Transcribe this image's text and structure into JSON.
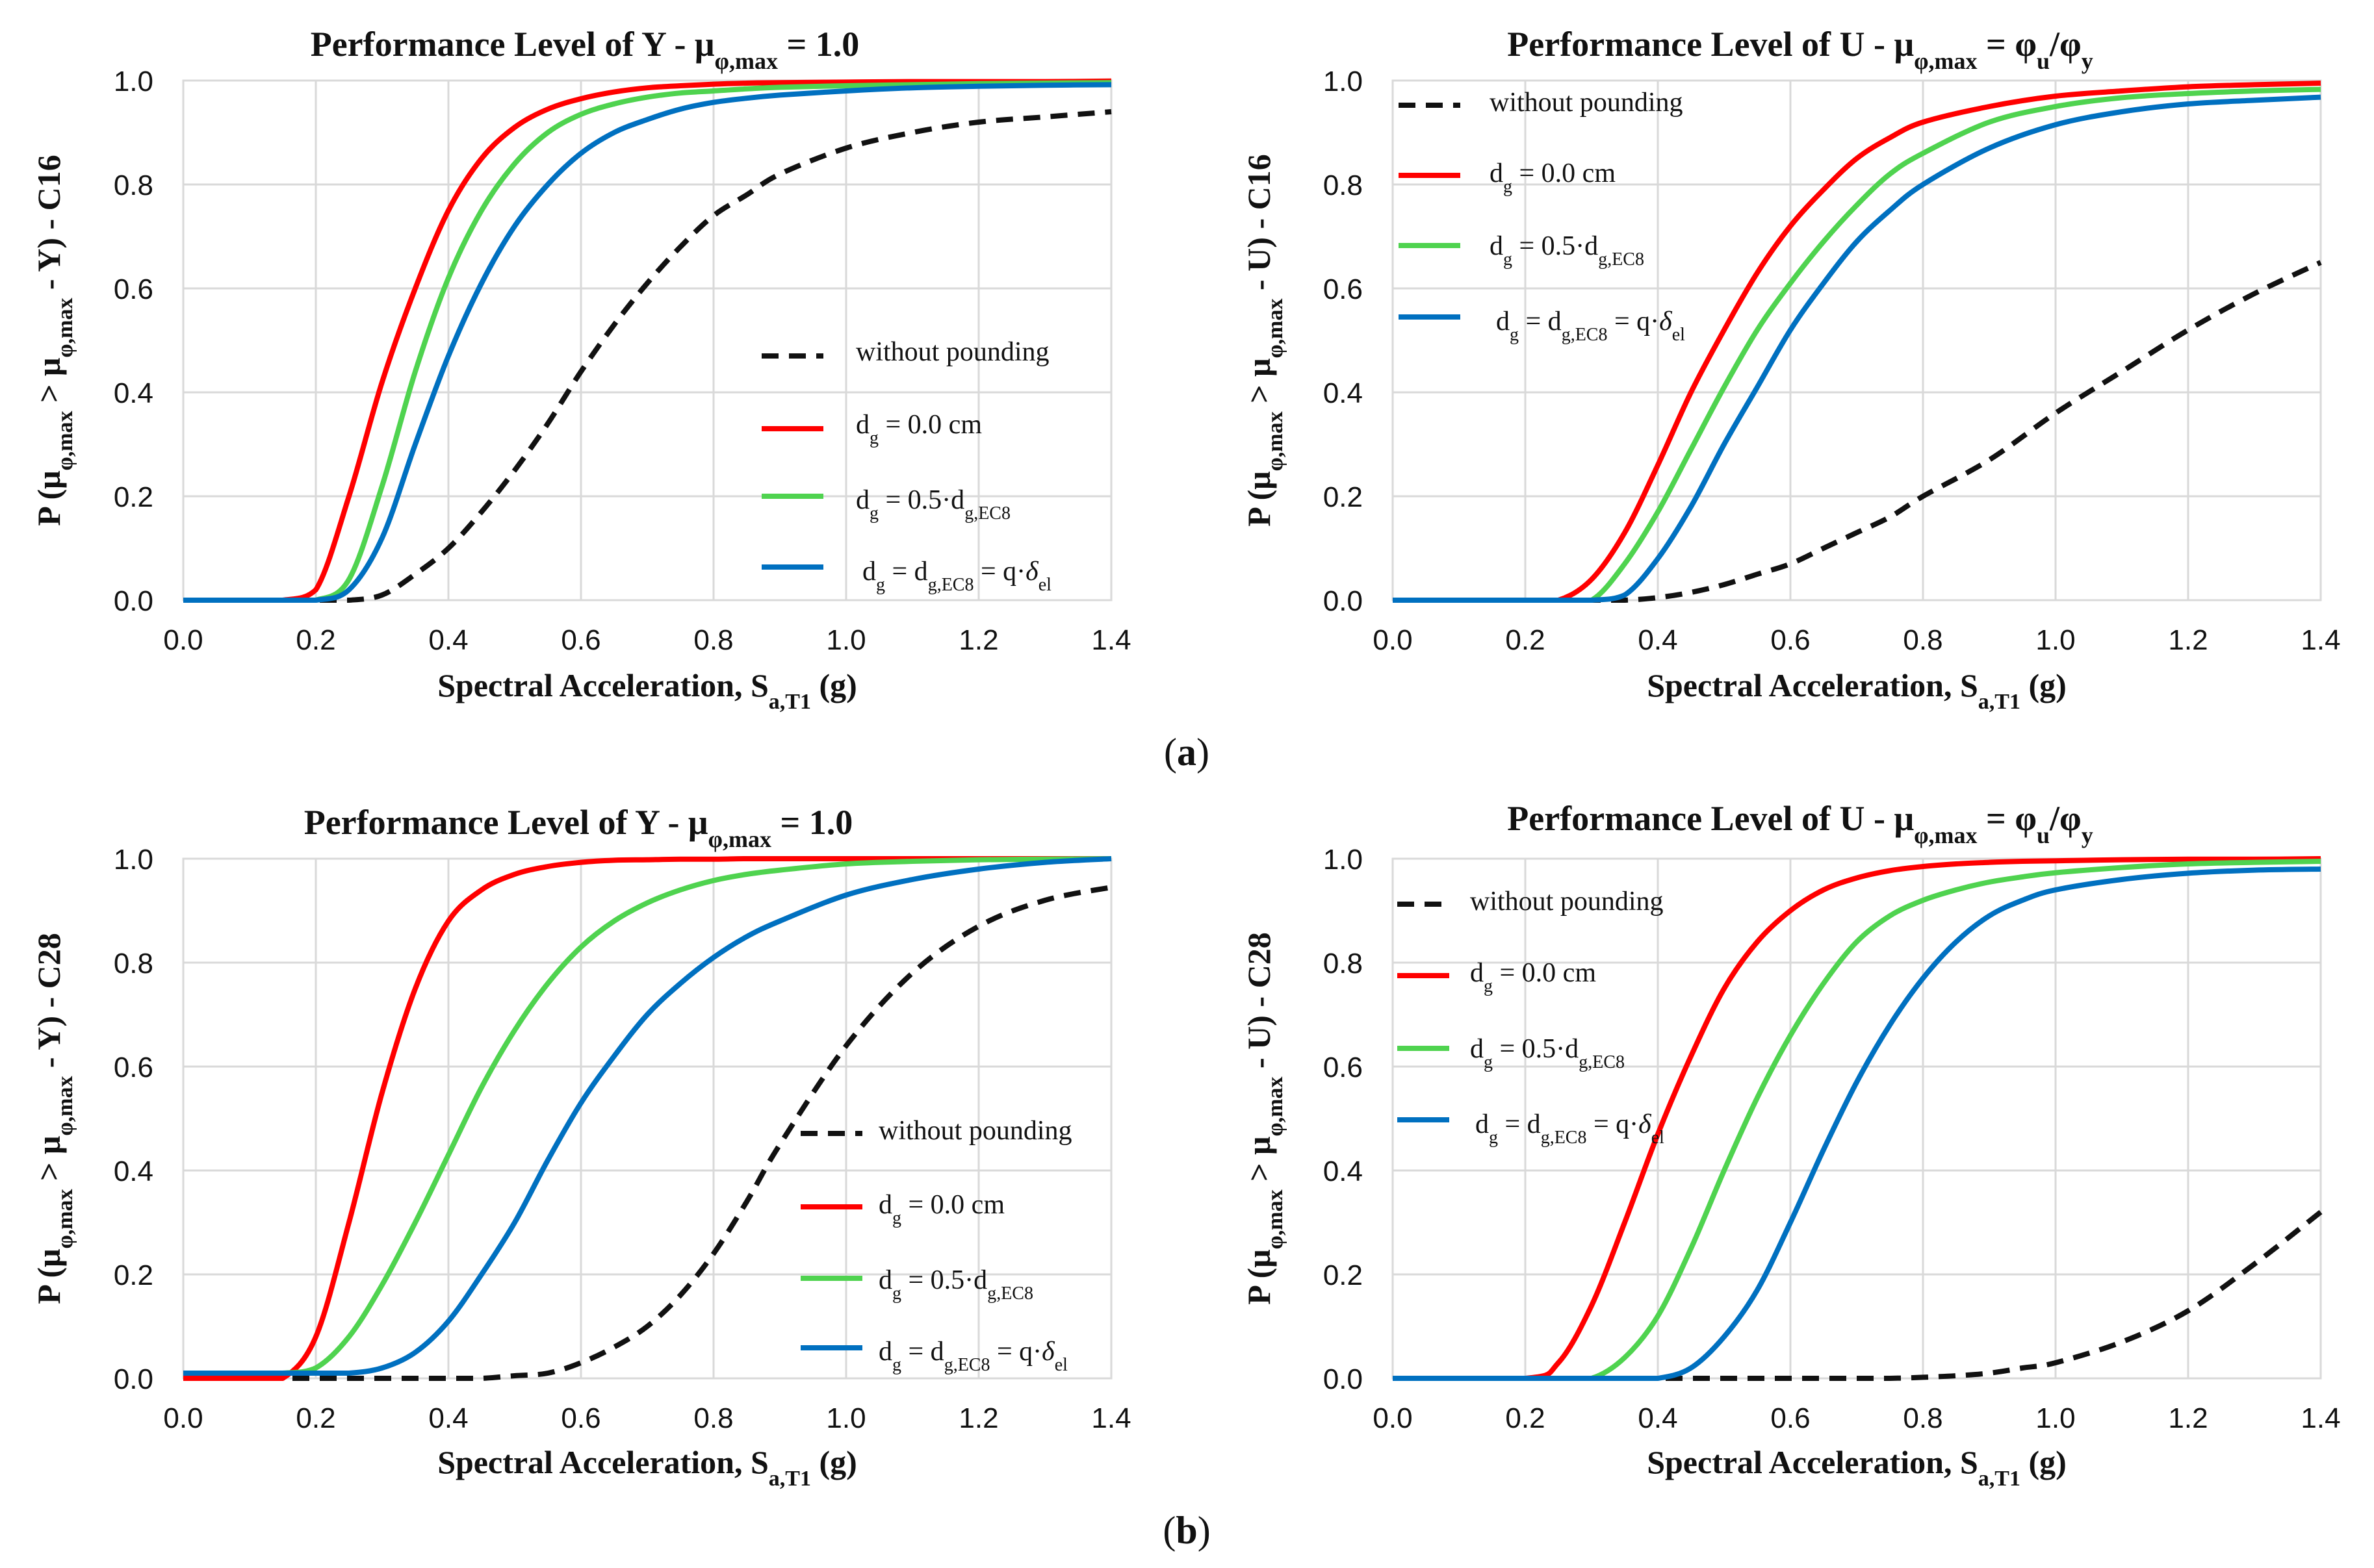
{
  "captions": {
    "a": "a",
    "b": "b"
  },
  "colors": {
    "red": "#ff0000",
    "green": "#4fd34f",
    "blue": "#0070c0",
    "black": "#111111"
  },
  "legend_labels": {
    "without": "without pounding",
    "dg0": "dg = 0.0 cm",
    "dg05": "dg = 0.5·dg,EC8",
    "dgec8": "dg = dg,EC8 = q·δel"
  },
  "chart_data": [
    {
      "id": "a-left",
      "type": "line",
      "title": "Performance Level of  Y - μφ,max = 1.0",
      "title_parts": {
        "t1": "Performance Level of  Y - μ",
        "s1": "φ,max",
        "t2": " = 1.0"
      },
      "xlabel": "Spectral Acceleration, Sa,T1 (g)",
      "ylabel": "P (μφ,max > μφ,max - Y) - C16",
      "ylabel_suffix": "Y) - C16",
      "xlim": [
        0,
        1.4
      ],
      "ylim": [
        0,
        1.0
      ],
      "xticks": [
        "0.0",
        "0.2",
        "0.4",
        "0.6",
        "0.8",
        "1.0",
        "1.2",
        "1.4"
      ],
      "yticks": [
        "0.0",
        "0.2",
        "0.4",
        "0.6",
        "0.8",
        "1.0"
      ],
      "legend_position": "center-right",
      "x": [
        0.0,
        0.1,
        0.15,
        0.2,
        0.25,
        0.3,
        0.35,
        0.4,
        0.45,
        0.5,
        0.55,
        0.6,
        0.65,
        0.7,
        0.75,
        0.8,
        0.85,
        0.9,
        1.0,
        1.1,
        1.2,
        1.3,
        1.4
      ],
      "series": [
        {
          "name": "without pounding",
          "style": "dashed",
          "values": [
            0,
            0,
            0,
            0,
            0,
            0.01,
            0.05,
            0.1,
            0.17,
            0.25,
            0.34,
            0.44,
            0.53,
            0.61,
            0.68,
            0.74,
            0.78,
            0.82,
            0.87,
            0.9,
            0.92,
            0.93,
            0.94
          ]
        },
        {
          "name": "dg = 0.0 cm",
          "style": "solid",
          "values": [
            0,
            0,
            0,
            0.02,
            0.2,
            0.42,
            0.6,
            0.75,
            0.85,
            0.91,
            0.945,
            0.965,
            0.978,
            0.986,
            0.99,
            0.993,
            0.995,
            0.996,
            0.997,
            0.998,
            0.998,
            0.998,
            0.999
          ]
        },
        {
          "name": "dg = 0.5·dg,EC8",
          "style": "solid",
          "values": [
            0,
            0,
            0,
            0,
            0.04,
            0.22,
            0.44,
            0.62,
            0.75,
            0.84,
            0.9,
            0.935,
            0.955,
            0.968,
            0.976,
            0.98,
            0.984,
            0.987,
            0.99,
            0.992,
            0.994,
            0.995,
            0.996
          ]
        },
        {
          "name": "dg = dg,EC8 = q·δel",
          "style": "solid",
          "values": [
            0,
            0,
            0,
            0,
            0.02,
            0.12,
            0.3,
            0.47,
            0.61,
            0.72,
            0.8,
            0.86,
            0.9,
            0.925,
            0.945,
            0.958,
            0.966,
            0.972,
            0.98,
            0.986,
            0.989,
            0.991,
            0.992
          ]
        }
      ]
    },
    {
      "id": "a-right",
      "type": "line",
      "title": "Performance Level of  U - μφ,max = φu/φy",
      "title_parts": {
        "t1": "Performance Level of  U - μ",
        "s1": "φ,max",
        "t2": " = φ",
        "s2": "u",
        "t3": "/φ",
        "s3": "y"
      },
      "xlabel": "Spectral Acceleration, Sa,T1 (g)",
      "ylabel": "P (μφ,max > μφ,max - U) - C16",
      "ylabel_suffix": "U) - C16",
      "xlim": [
        0,
        1.4
      ],
      "ylim": [
        0,
        1.0
      ],
      "xticks": [
        "0.0",
        "0.2",
        "0.4",
        "0.6",
        "0.8",
        "1.0",
        "1.2",
        "1.4"
      ],
      "yticks": [
        "0.0",
        "0.2",
        "0.4",
        "0.6",
        "0.8",
        "1.0"
      ],
      "legend_position": "top-left",
      "x": [
        0.0,
        0.2,
        0.25,
        0.3,
        0.35,
        0.4,
        0.45,
        0.5,
        0.55,
        0.6,
        0.65,
        0.7,
        0.75,
        0.8,
        0.9,
        1.0,
        1.1,
        1.2,
        1.3,
        1.4
      ],
      "series": [
        {
          "name": "without pounding",
          "style": "dashed",
          "values": [
            0,
            0,
            0,
            0,
            0,
            0.005,
            0.015,
            0.03,
            0.05,
            0.07,
            0.1,
            0.13,
            0.16,
            0.2,
            0.27,
            0.36,
            0.44,
            0.52,
            0.59,
            0.65
          ]
        },
        {
          "name": "dg = 0.0 cm",
          "style": "solid",
          "values": [
            0,
            0,
            0,
            0.04,
            0.13,
            0.26,
            0.4,
            0.52,
            0.63,
            0.72,
            0.79,
            0.85,
            0.89,
            0.92,
            0.95,
            0.97,
            0.98,
            0.988,
            0.992,
            0.995
          ]
        },
        {
          "name": "dg = 0.5·dg,EC8",
          "style": "solid",
          "values": [
            0,
            0,
            0,
            0,
            0.07,
            0.17,
            0.29,
            0.41,
            0.52,
            0.61,
            0.69,
            0.76,
            0.82,
            0.86,
            0.92,
            0.95,
            0.967,
            0.975,
            0.98,
            0.983
          ]
        },
        {
          "name": "dg = dg,EC8 = q·δel",
          "style": "solid",
          "values": [
            0,
            0,
            0,
            0,
            0.01,
            0.08,
            0.18,
            0.3,
            0.41,
            0.52,
            0.61,
            0.69,
            0.75,
            0.8,
            0.87,
            0.915,
            0.94,
            0.955,
            0.962,
            0.968
          ]
        }
      ]
    },
    {
      "id": "b-left",
      "type": "line",
      "title": "Performance Level of Y - μφ,max = 1.0",
      "title_parts": {
        "t1": "Performance Level of Y - μ",
        "s1": "φ,max",
        "t2": " = 1.0"
      },
      "xlabel": "Spectral Acceleration, Sa,T1 (g)",
      "ylabel": "P (μφ,max > μφ,max - Y) - C28",
      "ylabel_suffix": "Y) - C28",
      "xlim": [
        0,
        1.4
      ],
      "ylim": [
        0,
        1.0
      ],
      "xticks": [
        "0.0",
        "0.2",
        "0.4",
        "0.6",
        "0.8",
        "1.0",
        "1.2",
        "1.4"
      ],
      "yticks": [
        "0.0",
        "0.2",
        "0.4",
        "0.6",
        "0.8",
        "1.0"
      ],
      "legend_position": "center-right",
      "x": [
        0.0,
        0.1,
        0.15,
        0.2,
        0.25,
        0.3,
        0.35,
        0.4,
        0.45,
        0.5,
        0.55,
        0.6,
        0.65,
        0.7,
        0.75,
        0.8,
        0.85,
        0.9,
        1.0,
        1.1,
        1.2,
        1.3,
        1.4
      ],
      "series": [
        {
          "name": "without pounding",
          "style": "dashed",
          "values": [
            0,
            0,
            0,
            0,
            0,
            0,
            0,
            0,
            0,
            0.005,
            0.01,
            0.03,
            0.06,
            0.1,
            0.16,
            0.24,
            0.34,
            0.45,
            0.64,
            0.78,
            0.87,
            0.92,
            0.945
          ]
        },
        {
          "name": "dg = 0.0 cm",
          "style": "solid",
          "values": [
            0,
            0,
            0,
            0.08,
            0.3,
            0.55,
            0.75,
            0.88,
            0.94,
            0.97,
            0.985,
            0.993,
            0.997,
            0.998,
            0.999,
            0.999,
            1,
            1,
            1,
            1,
            1,
            1,
            1
          ]
        },
        {
          "name": "dg = 0.5·dg,EC8",
          "style": "solid",
          "values": [
            0.01,
            0.01,
            0.01,
            0.02,
            0.08,
            0.18,
            0.3,
            0.43,
            0.56,
            0.67,
            0.76,
            0.83,
            0.88,
            0.915,
            0.94,
            0.958,
            0.97,
            0.978,
            0.99,
            0.995,
            0.998,
            0.999,
            1
          ]
        },
        {
          "name": "dg = dg,EC8 = q·δel",
          "style": "solid",
          "values": [
            0.01,
            0.01,
            0.01,
            0.01,
            0.01,
            0.02,
            0.05,
            0.11,
            0.2,
            0.3,
            0.42,
            0.53,
            0.62,
            0.7,
            0.76,
            0.81,
            0.85,
            0.88,
            0.93,
            0.96,
            0.98,
            0.993,
            1
          ]
        }
      ]
    },
    {
      "id": "b-right",
      "type": "line",
      "title": "Performance Level of U - μφ,max = φu/φy",
      "title_parts": {
        "t1": "Performance Level of U - μ",
        "s1": "φ,max",
        "t2": " = φ",
        "s2": "u",
        "t3": "/φ",
        "s3": "y"
      },
      "xlabel": "Spectral Acceleration, Sa,T1 (g)",
      "ylabel": "P (μφ,max > μφ,max - U) - C28",
      "ylabel_suffix": "U) - C28",
      "xlim": [
        0,
        1.4
      ],
      "ylim": [
        0,
        1.0
      ],
      "xticks": [
        "0.0",
        "0.2",
        "0.4",
        "0.6",
        "0.8",
        "1.0",
        "1.2",
        "1.4"
      ],
      "yticks": [
        "0.0",
        "0.2",
        "0.4",
        "0.6",
        "0.8",
        "1.0"
      ],
      "legend_position": "top-left",
      "x": [
        0.0,
        0.2,
        0.25,
        0.3,
        0.35,
        0.4,
        0.45,
        0.5,
        0.55,
        0.6,
        0.65,
        0.7,
        0.75,
        0.8,
        0.85,
        0.9,
        0.95,
        1.0,
        1.1,
        1.2,
        1.3,
        1.4
      ],
      "series": [
        {
          "name": "without pounding",
          "style": "dashed",
          "values": [
            0,
            0,
            0,
            0,
            0,
            0,
            0,
            0,
            0,
            0,
            0,
            0,
            0,
            0.002,
            0.005,
            0.01,
            0.02,
            0.03,
            0.07,
            0.13,
            0.22,
            0.32
          ]
        },
        {
          "name": "dg = 0.0 cm",
          "style": "solid",
          "values": [
            0,
            0,
            0.03,
            0.14,
            0.3,
            0.47,
            0.62,
            0.75,
            0.84,
            0.9,
            0.94,
            0.963,
            0.977,
            0.985,
            0.99,
            0.993,
            0.995,
            0.996,
            0.998,
            0.999,
            0.999,
            1
          ]
        },
        {
          "name": "dg = 0.5·dg,EC8",
          "style": "solid",
          "values": [
            0,
            0,
            0,
            0,
            0.04,
            0.12,
            0.25,
            0.4,
            0.54,
            0.66,
            0.76,
            0.84,
            0.89,
            0.92,
            0.94,
            0.955,
            0.965,
            0.973,
            0.983,
            0.99,
            0.993,
            0.995
          ]
        },
        {
          "name": "dg = dg,EC8 = q·δel",
          "style": "solid",
          "values": [
            0,
            0,
            0,
            0,
            0,
            0,
            0.02,
            0.08,
            0.17,
            0.3,
            0.44,
            0.57,
            0.68,
            0.77,
            0.84,
            0.89,
            0.92,
            0.94,
            0.96,
            0.972,
            0.978,
            0.98
          ]
        }
      ]
    }
  ]
}
